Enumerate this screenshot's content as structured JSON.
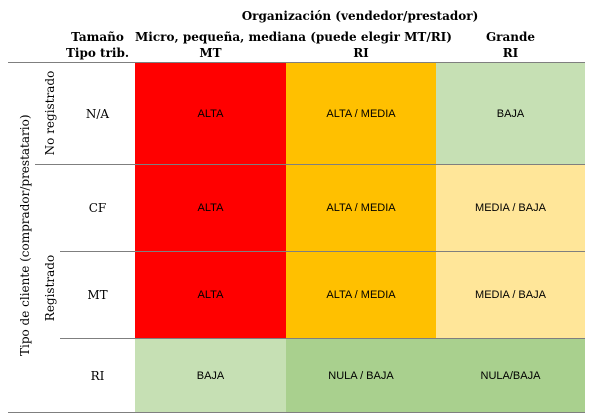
{
  "header": {
    "org_title": "Organización (vendedor/prestador)",
    "size_label": "Tamaño",
    "tax_label": "Tipo trib.",
    "col1_title": "Micro, pequeña, mediana (puede elegir MT/RI)",
    "col1_sub1": "MT",
    "col1_sub2": "RI",
    "col2_title": "Grande",
    "col2_sub": "RI"
  },
  "side": {
    "client_type": "Tipo de cliente (comprador/prestatario)",
    "not_registered": "No registrado",
    "registered": "Registrado"
  },
  "rows": [
    {
      "tax": "N/A",
      "mt": "ALTA",
      "ri": "ALTA / MEDIA",
      "grande": "BAJA"
    },
    {
      "tax": "CF",
      "mt": "ALTA",
      "ri": "ALTA / MEDIA",
      "grande": "MEDIA / BAJA"
    },
    {
      "tax": "MT",
      "mt": "ALTA",
      "ri": "ALTA / MEDIA",
      "grande": "MEDIA / BAJA"
    },
    {
      "tax": "RI",
      "mt": "BAJA",
      "ri": "NULA / BAJA",
      "grande": "NULA/BAJA"
    }
  ],
  "colors": {
    "alta": "#ff0000",
    "alta_media": "#ffc000",
    "media_baja": "#ffe699",
    "baja": "#c6e0b4",
    "nula_baja": "#a9d08e"
  }
}
